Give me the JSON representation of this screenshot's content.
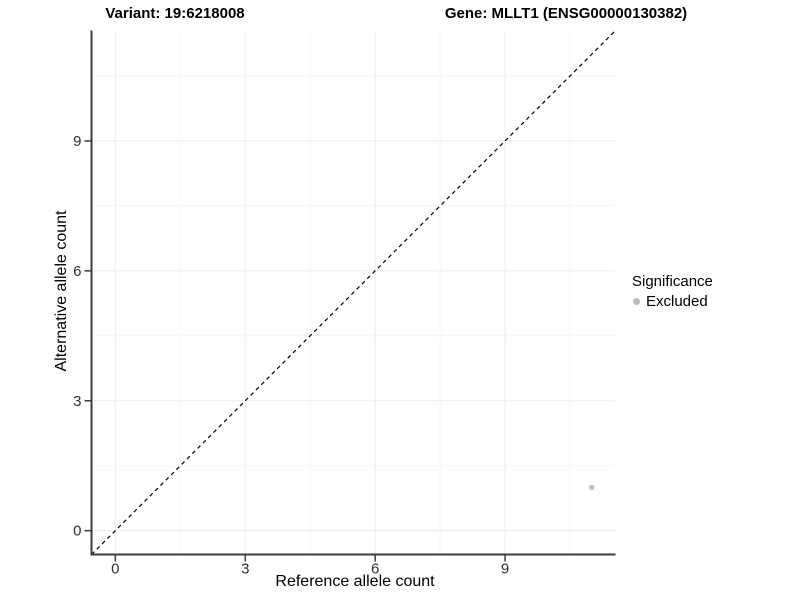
{
  "header": {
    "variant_title": "Variant: 19:6218008",
    "gene_title": "Gene: MLLT1 (ENSG00000130382)"
  },
  "legend": {
    "title": "Significance",
    "items": [
      {
        "label": "Excluded",
        "color": "#bcbcbc"
      }
    ]
  },
  "chart_data": {
    "type": "scatter",
    "title": "Variant: 19:6218008  /  Gene: MLLT1 (ENSG00000130382)",
    "xlabel": "Reference allele count",
    "ylabel": "Alternative allele count",
    "xlim": [
      -0.55,
      11.55
    ],
    "ylim": [
      -0.55,
      11.55
    ],
    "xticks": [
      0,
      3,
      6,
      9
    ],
    "yticks": [
      0,
      3,
      6,
      9
    ],
    "xminor": [
      1.5,
      4.5,
      7.5,
      10.5
    ],
    "yminor": [
      1.5,
      4.5,
      7.5,
      10.5
    ],
    "grid": true,
    "legend_position": "right",
    "identity_line": {
      "from": [
        -0.55,
        -0.55
      ],
      "to": [
        11.55,
        11.55
      ],
      "style": "dashed",
      "color": "#000000"
    },
    "series": [
      {
        "name": "Excluded",
        "points": [
          {
            "x": 11,
            "y": 1
          }
        ],
        "color": "#bcbcbc"
      }
    ],
    "colors": {
      "axis_line": "#3c3c3c",
      "tick_label": "#303030",
      "grid_major": "#ebebeb",
      "grid_minor": "#f5f5f5",
      "background": "#ffffff"
    }
  }
}
